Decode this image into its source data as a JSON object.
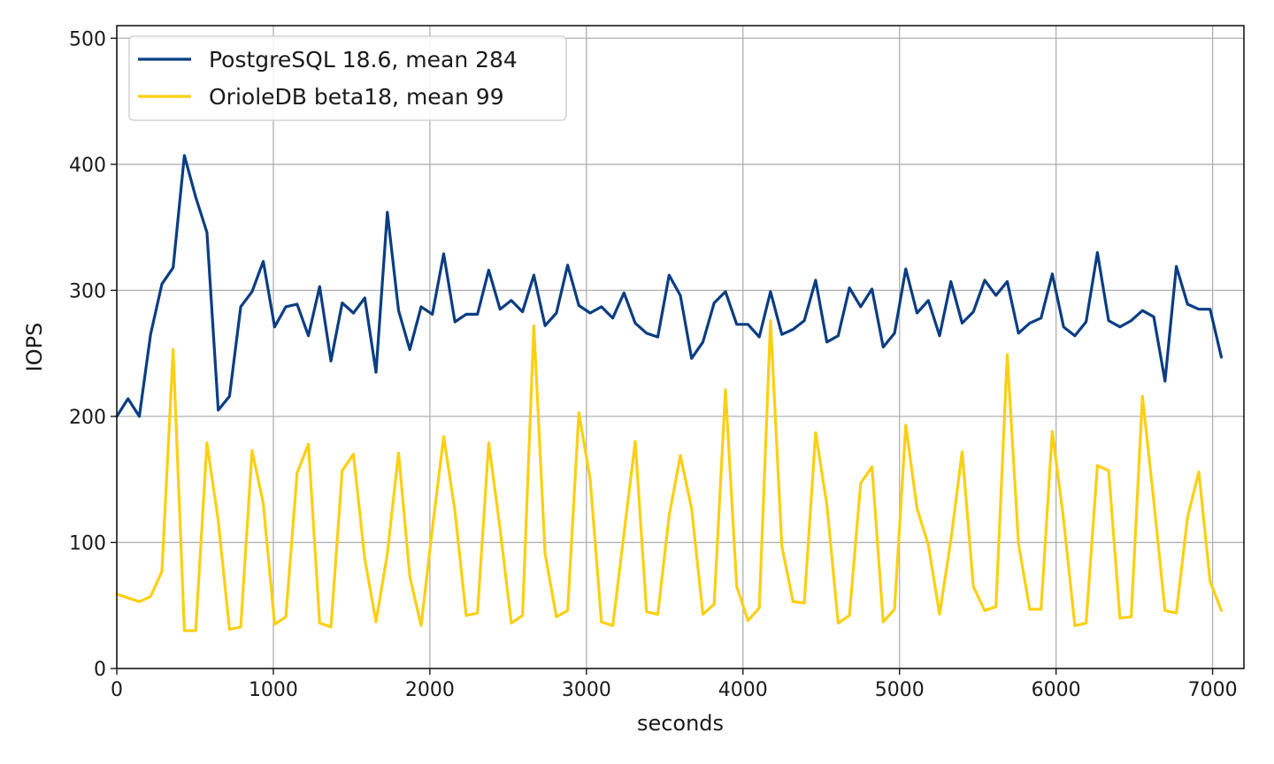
{
  "chart_data": {
    "type": "line",
    "title": "",
    "xlabel": "seconds",
    "ylabel": "IOPS",
    "xlim": [
      0,
      7200
    ],
    "ylim": [
      0,
      510
    ],
    "xticks": [
      0,
      1000,
      2000,
      3000,
      4000,
      5000,
      6000,
      7000
    ],
    "yticks": [
      0,
      100,
      200,
      300,
      400,
      500
    ],
    "xtick_labels": [
      "0",
      "1000",
      "2000",
      "3000",
      "4000",
      "5000",
      "6000",
      "7000"
    ],
    "ytick_labels": [
      "0",
      "100",
      "200",
      "300",
      "400",
      "500"
    ],
    "grid": true,
    "legend_position": "upper-left",
    "x": [
      0,
      72,
      144,
      216,
      288,
      360,
      432,
      504,
      576,
      648,
      720,
      792,
      864,
      936,
      1008,
      1080,
      1152,
      1224,
      1296,
      1368,
      1440,
      1512,
      1584,
      1656,
      1728,
      1800,
      1872,
      1944,
      2016,
      2088,
      2160,
      2232,
      2304,
      2376,
      2448,
      2520,
      2592,
      2664,
      2736,
      2808,
      2880,
      2952,
      3024,
      3096,
      3168,
      3240,
      3312,
      3384,
      3456,
      3528,
      3600,
      3672,
      3744,
      3816,
      3888,
      3960,
      4032,
      4104,
      4176,
      4248,
      4320,
      4392,
      4464,
      4536,
      4608,
      4680,
      4752,
      4824,
      4896,
      4968,
      5040,
      5112,
      5184,
      5256,
      5328,
      5400,
      5472,
      5544,
      5616,
      5688,
      5760,
      5832,
      5904,
      5976,
      6048,
      6120,
      6192,
      6264,
      6336,
      6408,
      6480,
      6552,
      6624,
      6696,
      6768,
      6840,
      6912,
      6984,
      7056
    ],
    "series": [
      {
        "name": "PostgreSQL 18.6, mean 284",
        "color": "#0b3d82",
        "values": [
          200,
          214,
          200,
          265,
          305,
          318,
          407,
          374,
          346,
          205,
          216,
          287,
          299,
          323,
          271,
          287,
          289,
          264,
          303,
          244,
          290,
          282,
          294,
          235,
          362,
          284,
          253,
          287,
          281,
          329,
          275,
          281,
          281,
          316,
          285,
          292,
          283,
          312,
          272,
          282,
          320,
          288,
          282,
          287,
          278,
          298,
          274,
          266,
          263,
          312,
          296,
          246,
          259,
          290,
          299,
          273,
          273,
          263,
          299,
          265,
          269,
          276,
          308,
          259,
          264,
          302,
          287,
          301,
          255,
          266,
          317,
          282,
          292,
          264,
          307,
          274,
          283,
          308,
          296,
          307,
          266,
          274,
          278,
          313,
          271,
          264,
          275,
          330,
          276,
          271,
          276,
          284,
          279,
          228,
          319,
          289,
          285,
          285,
          247
        ]
      },
      {
        "name": "OrioleDB beta18, mean 99",
        "color": "#fccf12",
        "values": [
          59,
          56,
          53,
          57,
          77,
          253,
          30,
          30,
          179,
          117,
          31,
          33,
          173,
          131,
          35,
          41,
          155,
          178,
          36,
          33,
          157,
          170,
          87,
          37,
          91,
          171,
          73,
          34,
          111,
          184,
          125,
          42,
          44,
          179,
          111,
          36,
          42,
          272,
          91,
          41,
          46,
          203,
          150,
          37,
          34,
          107,
          180,
          45,
          43,
          121,
          169,
          127,
          43,
          51,
          221,
          65,
          38,
          48,
          276,
          97,
          53,
          52,
          187,
          130,
          36,
          42,
          147,
          160,
          37,
          47,
          193,
          127,
          98,
          43,
          102,
          172,
          65,
          46,
          49,
          249,
          99,
          47,
          47,
          188,
          118,
          34,
          36,
          161,
          157,
          40,
          41,
          216,
          133,
          46,
          44,
          120,
          156,
          69,
          46
        ]
      }
    ]
  }
}
